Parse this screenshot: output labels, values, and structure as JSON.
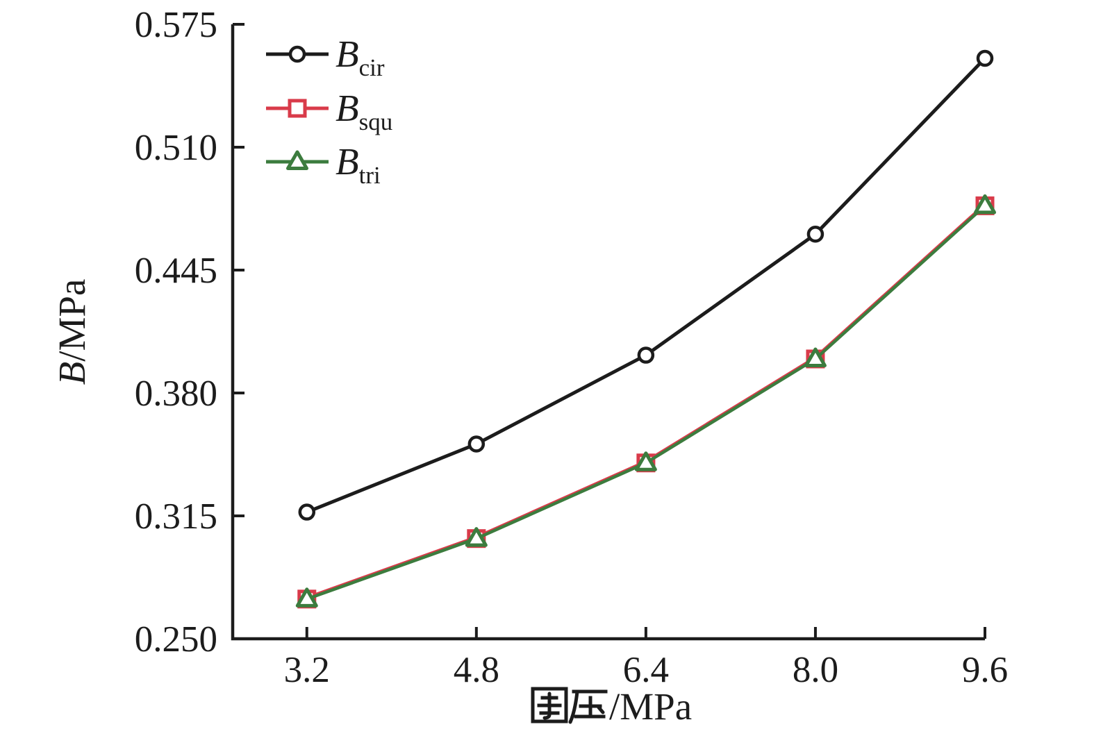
{
  "figure_title": "",
  "axes": {
    "x": {
      "label_full": "围压/MPa",
      "label_cjk": "围压",
      "label_unit": "/MPa"
    },
    "y": {
      "label_full": "B/MPa",
      "label_main": "B",
      "label_unit": "/MPa"
    }
  },
  "colors": {
    "axis": "#1c1c1c",
    "black_series": "#1c1c1c",
    "red_series": "#d93b4a",
    "green_series": "#3c7c3e",
    "marker_fill": "#ffffff"
  },
  "chart_data": {
    "type": "line",
    "title": "",
    "xlabel": "围压/MPa",
    "ylabel": "B/MPa",
    "x": [
      3.2,
      4.8,
      6.4,
      8.0,
      9.6
    ],
    "xtick_labels": [
      "3.2",
      "4.8",
      "6.4",
      "8.0",
      "9.6"
    ],
    "yticks": [
      0.25,
      0.315,
      0.38,
      0.445,
      0.51,
      0.575
    ],
    "ytick_labels": [
      "0.250",
      "0.315",
      "0.380",
      "0.445",
      "0.510",
      "0.575"
    ],
    "xlim": [
      2.5,
      9.6
    ],
    "ylim": [
      0.25,
      0.575
    ],
    "grid": false,
    "legend_position": "upper-left-inside",
    "legend_entries": [
      "B cir",
      "B squ",
      "B tri"
    ],
    "series": [
      {
        "name": "B_cir",
        "label_main": "B",
        "label_sub": "cir",
        "marker": "circle",
        "color": "#1c1c1c",
        "line_width": 5,
        "values": [
          0.317,
          0.353,
          0.4,
          0.464,
          0.557
        ]
      },
      {
        "name": "B_squ",
        "label_main": "B",
        "label_sub": "squ",
        "marker": "square",
        "color": "#d93b4a",
        "line_width": 5.5,
        "values": [
          0.271,
          0.303,
          0.343,
          0.398,
          0.479
        ]
      },
      {
        "name": "B_tri",
        "label_main": "B",
        "label_sub": "tri",
        "marker": "triangle",
        "color": "#3c7c3e",
        "line_width": 4.5,
        "values": [
          0.271,
          0.303,
          0.343,
          0.398,
          0.479
        ]
      }
    ]
  }
}
